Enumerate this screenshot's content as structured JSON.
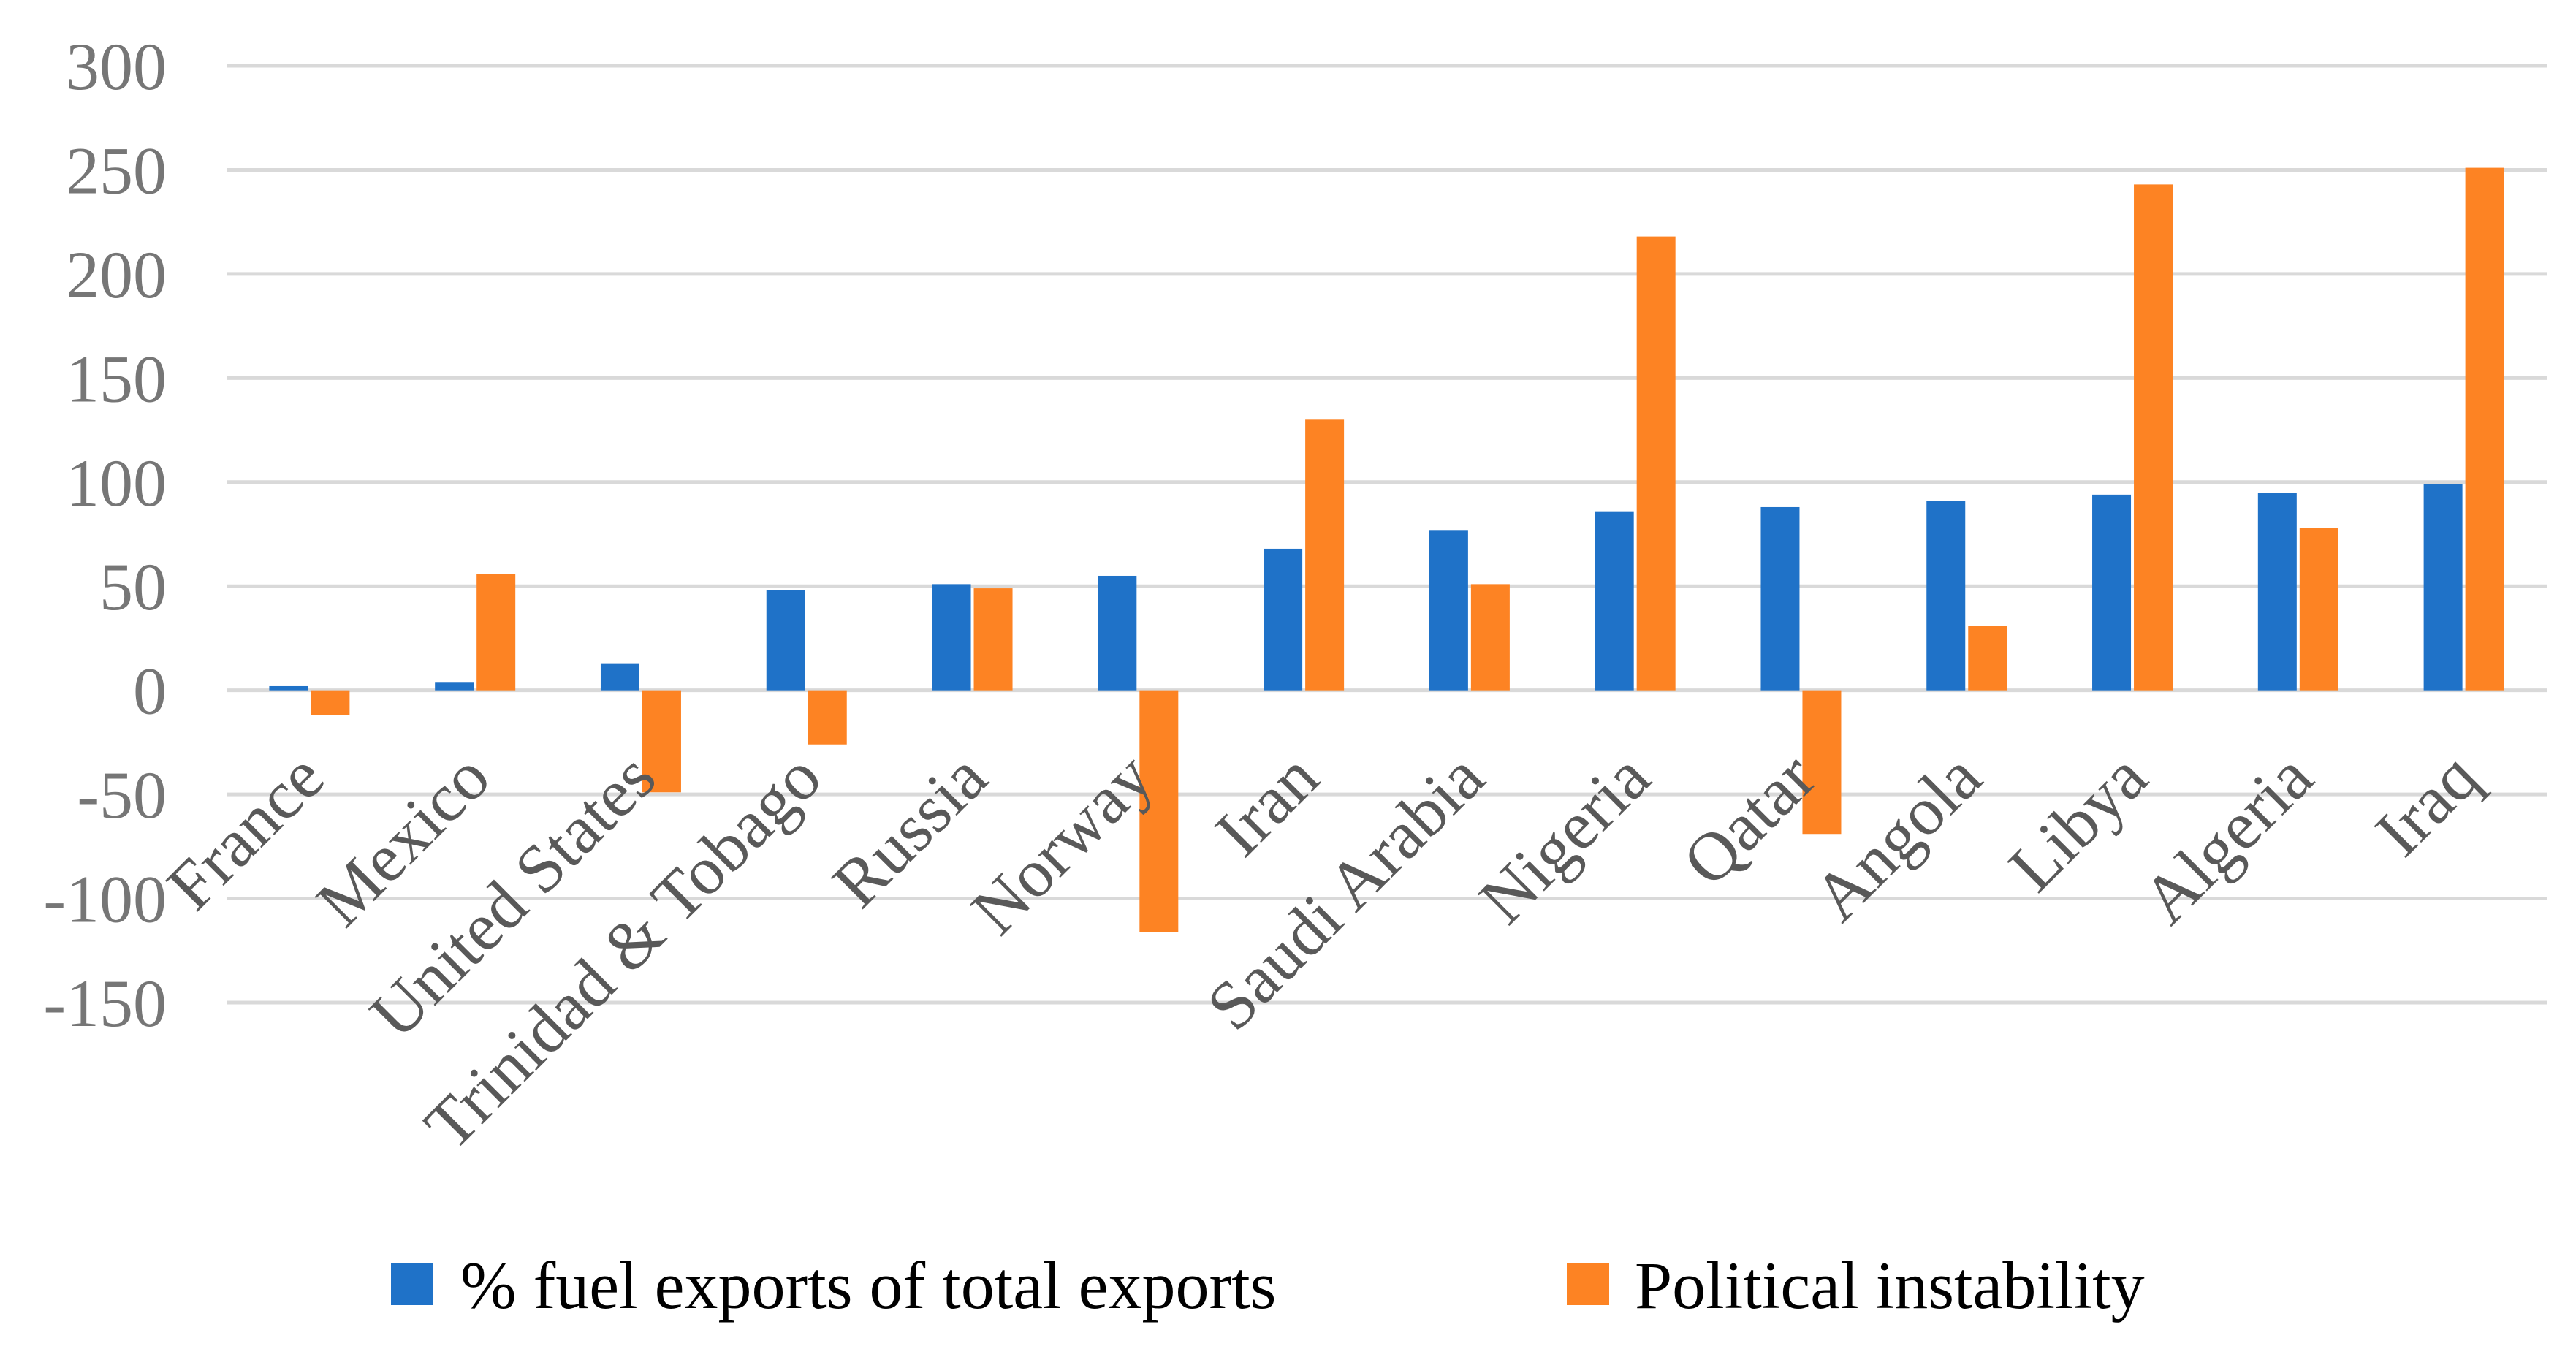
{
  "chart_data": {
    "type": "bar",
    "title": "",
    "xlabel": "",
    "ylabel": "",
    "categories": [
      "France",
      "Mexico",
      "United States",
      "Trinidad & Tobago",
      "Russia",
      "Norway",
      "Iran",
      "Saudi Arabia",
      "Nigeria",
      "Qatar",
      "Angola",
      "Libya",
      "Algeria",
      "Iraq"
    ],
    "series": [
      {
        "name": "% fuel exports of total exports",
        "color": "#1f72c8",
        "values": [
          2,
          4,
          13,
          48,
          51,
          55,
          68,
          77,
          86,
          88,
          91,
          94,
          95,
          99
        ]
      },
      {
        "name": "Political instability",
        "color": "#fd8323",
        "values": [
          -12,
          56,
          -49,
          -26,
          49,
          -116,
          130,
          51,
          218,
          -69,
          31,
          243,
          78,
          251
        ]
      }
    ],
    "ylim": [
      -150,
      300
    ],
    "yticks": [
      300,
      250,
      200,
      150,
      100,
      50,
      0,
      -50,
      -100,
      -150
    ],
    "grid": true,
    "legend_position": "bottom"
  }
}
